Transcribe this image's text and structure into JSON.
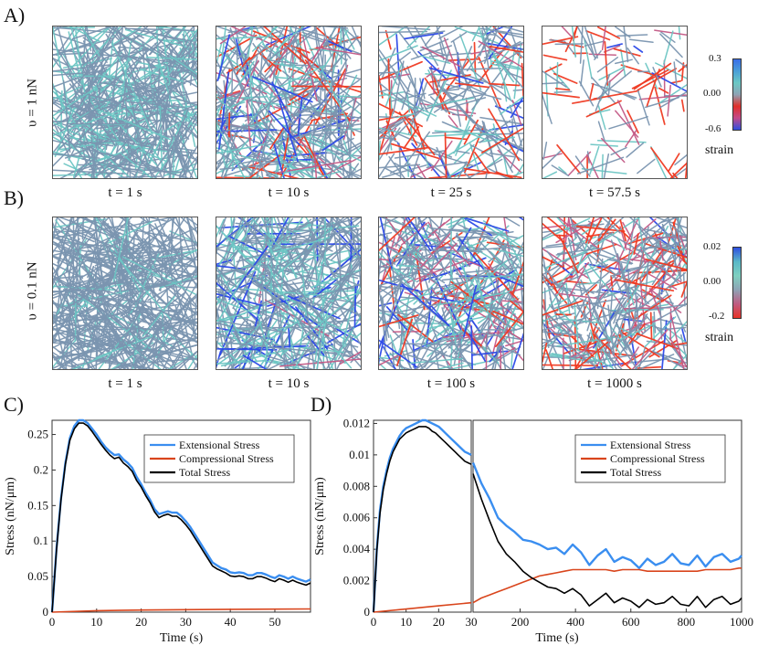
{
  "panel_labels": {
    "a": "A)",
    "b": "B)",
    "c": "C)",
    "d": "D)"
  },
  "row_a": {
    "ylabel": "υ = 1 nN",
    "times": [
      "t = 1 s",
      "t = 10 s",
      "t = 25 s",
      "t = 57.5 s"
    ],
    "colorbar": {
      "top": "0.3",
      "mid": "0.00",
      "bottom": "-0.6",
      "title": "strain",
      "colors": [
        "#3a6ee8",
        "#4a9fd8",
        "#6bc8c4",
        "#8fa3b5",
        "#e0302a",
        "#c24a8a",
        "#2f4fe0"
      ]
    }
  },
  "row_b": {
    "ylabel": "υ = 0.1 nN",
    "times": [
      "t = 1 s",
      "t = 10 s",
      "t = 100 s",
      "t = 1000 s"
    ],
    "colorbar": {
      "top": "0.02",
      "mid": "0.00",
      "bottom": "-0.2",
      "title": "strain",
      "colors": [
        "#2f4fe0",
        "#5ab8c8",
        "#7fd0c0",
        "#8fa3b5",
        "#c05c82",
        "#e83428"
      ]
    }
  },
  "network_colors": {
    "base": "#7b95b0",
    "cyan": "#6cc6c4",
    "blue": "#2c49e8",
    "red": "#f03a22",
    "pink": "#c45a86"
  },
  "chart_data": [
    {
      "id": "C",
      "type": "line",
      "xlabel": "Time (s)",
      "ylabel": "Stress (nN/μm)",
      "xlim": [
        0,
        58
      ],
      "ylim": [
        0,
        0.27
      ],
      "xticks": [
        0,
        10,
        20,
        30,
        40,
        50
      ],
      "xtick_labels": [
        "0",
        "10",
        "20",
        "30",
        "40",
        "50"
      ],
      "yticks": [
        0,
        0.05,
        0.1,
        0.15,
        0.2,
        0.25
      ],
      "ytick_labels": [
        "0",
        "0.05",
        "0.1",
        "0.15",
        "0.2",
        "0.25"
      ],
      "legend": [
        "Extensional Stress",
        "Compressional Stress",
        "Total Stress"
      ],
      "series": [
        {
          "name": "Extensional Stress",
          "color": "#3a8ef0",
          "x": [
            0,
            1,
            2,
            3,
            4,
            5,
            6,
            7,
            8,
            9,
            10,
            11,
            12,
            13,
            14,
            15,
            16,
            17,
            18,
            19,
            20,
            21,
            22,
            23,
            24,
            25,
            26,
            27,
            28,
            29,
            30,
            31,
            32,
            33,
            34,
            35,
            36,
            37,
            38,
            39,
            40,
            41,
            42,
            43,
            44,
            45,
            46,
            47,
            48,
            49,
            50,
            51,
            52,
            53,
            54,
            55,
            56,
            57,
            58
          ],
          "values": [
            0,
            0.09,
            0.16,
            0.21,
            0.245,
            0.262,
            0.27,
            0.27,
            0.266,
            0.258,
            0.25,
            0.24,
            0.232,
            0.226,
            0.221,
            0.222,
            0.215,
            0.21,
            0.203,
            0.19,
            0.18,
            0.168,
            0.158,
            0.145,
            0.138,
            0.14,
            0.142,
            0.14,
            0.14,
            0.135,
            0.128,
            0.12,
            0.11,
            0.1,
            0.09,
            0.08,
            0.07,
            0.066,
            0.062,
            0.06,
            0.056,
            0.055,
            0.056,
            0.055,
            0.052,
            0.052,
            0.055,
            0.055,
            0.053,
            0.05,
            0.048,
            0.052,
            0.05,
            0.047,
            0.05,
            0.047,
            0.045,
            0.043,
            0.046
          ]
        },
        {
          "name": "Compressional Stress",
          "color": "#d9451c",
          "x": [
            0,
            10,
            20,
            30,
            40,
            50,
            58
          ],
          "values": [
            0,
            0.002,
            0.003,
            0.0035,
            0.004,
            0.0042,
            0.0045
          ]
        },
        {
          "name": "Total Stress",
          "color": "#000000",
          "x": [
            0,
            1,
            2,
            3,
            4,
            5,
            6,
            7,
            8,
            9,
            10,
            11,
            12,
            13,
            14,
            15,
            16,
            17,
            18,
            19,
            20,
            21,
            22,
            23,
            24,
            25,
            26,
            27,
            28,
            29,
            30,
            31,
            32,
            33,
            34,
            35,
            36,
            37,
            38,
            39,
            40,
            41,
            42,
            43,
            44,
            45,
            46,
            47,
            48,
            49,
            50,
            51,
            52,
            53,
            54,
            55,
            56,
            57,
            58
          ],
          "values": [
            0,
            0.088,
            0.158,
            0.208,
            0.242,
            0.258,
            0.266,
            0.266,
            0.262,
            0.254,
            0.245,
            0.236,
            0.228,
            0.221,
            0.216,
            0.218,
            0.21,
            0.205,
            0.198,
            0.185,
            0.176,
            0.164,
            0.154,
            0.141,
            0.133,
            0.136,
            0.138,
            0.135,
            0.135,
            0.13,
            0.123,
            0.115,
            0.105,
            0.095,
            0.085,
            0.075,
            0.065,
            0.061,
            0.058,
            0.055,
            0.051,
            0.05,
            0.051,
            0.05,
            0.047,
            0.047,
            0.05,
            0.05,
            0.048,
            0.045,
            0.043,
            0.047,
            0.045,
            0.042,
            0.045,
            0.042,
            0.04,
            0.038,
            0.041
          ]
        }
      ]
    },
    {
      "id": "D",
      "type": "line",
      "xlabel": "Time (s)",
      "ylabel": "Stress (nN/μm)",
      "ylim": [
        0,
        0.0122
      ],
      "yticks": [
        0,
        0.002,
        0.004,
        0.006,
        0.008,
        0.01,
        0.012
      ],
      "ytick_labels": [
        "0",
        "0.002",
        "0.004",
        "0.006",
        "0.008",
        "0.01",
        "0.012"
      ],
      "left_xlim": [
        0,
        30
      ],
      "left_xticks": [
        0,
        10,
        20,
        30
      ],
      "left_xtick_labels": [
        "0",
        "10",
        "20",
        "30"
      ],
      "right_xlim": [
        30,
        1000
      ],
      "right_xticks": [
        200,
        400,
        600,
        800,
        1000
      ],
      "right_xtick_labels": [
        "200",
        "400",
        "600",
        "800",
        "1000"
      ],
      "legend": [
        "Extensional Stress",
        "Compressional Stress",
        "Total Stress"
      ],
      "series_left": [
        {
          "name": "Extensional Stress",
          "color": "#3a8ef0",
          "x": [
            0,
            1,
            2,
            3,
            4,
            5,
            6,
            7,
            8,
            9,
            10,
            11,
            12,
            13,
            14,
            15,
            16,
            17,
            18,
            19,
            20,
            21,
            22,
            23,
            24,
            25,
            26,
            27,
            28,
            29,
            30
          ],
          "values": [
            0,
            0.004,
            0.0065,
            0.008,
            0.009,
            0.0098,
            0.0104,
            0.0108,
            0.0112,
            0.0115,
            0.0117,
            0.0118,
            0.0119,
            0.012,
            0.0121,
            0.0122,
            0.0122,
            0.0121,
            0.012,
            0.0119,
            0.0118,
            0.0116,
            0.0114,
            0.0112,
            0.011,
            0.0108,
            0.0106,
            0.0104,
            0.0102,
            0.0101,
            0.01
          ]
        },
        {
          "name": "Compressional Stress",
          "color": "#d9451c",
          "x": [
            0,
            10,
            20,
            30
          ],
          "values": [
            0,
            0.0002,
            0.0004,
            0.0006
          ]
        },
        {
          "name": "Total Stress",
          "color": "#000000",
          "x": [
            0,
            1,
            2,
            3,
            4,
            5,
            6,
            7,
            8,
            9,
            10,
            11,
            12,
            13,
            14,
            15,
            16,
            17,
            18,
            19,
            20,
            21,
            22,
            23,
            24,
            25,
            26,
            27,
            28,
            29,
            30
          ],
          "values": [
            0,
            0.0039,
            0.0063,
            0.0078,
            0.0088,
            0.0096,
            0.0102,
            0.0106,
            0.011,
            0.0112,
            0.0114,
            0.0115,
            0.0116,
            0.0117,
            0.0118,
            0.0118,
            0.0118,
            0.0117,
            0.0115,
            0.0114,
            0.0112,
            0.011,
            0.0108,
            0.0106,
            0.0104,
            0.0102,
            0.01,
            0.0098,
            0.0096,
            0.0095,
            0.0094
          ]
        }
      ],
      "series_right": [
        {
          "name": "Extensional Stress",
          "color": "#3a8ef0",
          "x": [
            30,
            60,
            90,
            120,
            150,
            180,
            210,
            240,
            270,
            300,
            330,
            360,
            390,
            420,
            450,
            480,
            510,
            540,
            570,
            600,
            630,
            660,
            690,
            720,
            750,
            780,
            810,
            840,
            870,
            900,
            930,
            960,
            990,
            1000
          ],
          "values": [
            0.0095,
            0.0082,
            0.0072,
            0.006,
            0.0055,
            0.0051,
            0.0046,
            0.0045,
            0.0043,
            0.004,
            0.0041,
            0.0037,
            0.0043,
            0.0038,
            0.003,
            0.0036,
            0.004,
            0.0032,
            0.0035,
            0.0033,
            0.0028,
            0.0034,
            0.003,
            0.0032,
            0.0037,
            0.0031,
            0.003,
            0.0036,
            0.0029,
            0.0035,
            0.0037,
            0.0032,
            0.0034,
            0.0036
          ]
        },
        {
          "name": "Compressional Stress",
          "color": "#d9451c",
          "x": [
            30,
            60,
            90,
            120,
            150,
            180,
            210,
            240,
            270,
            300,
            330,
            360,
            390,
            420,
            450,
            480,
            510,
            540,
            570,
            600,
            630,
            660,
            690,
            720,
            750,
            780,
            810,
            840,
            870,
            900,
            930,
            960,
            990,
            1000
          ],
          "values": [
            0.0006,
            0.0009,
            0.0011,
            0.0013,
            0.0015,
            0.0017,
            0.0019,
            0.0021,
            0.0023,
            0.0024,
            0.0025,
            0.0026,
            0.0027,
            0.0027,
            0.0027,
            0.0027,
            0.0027,
            0.0026,
            0.0027,
            0.0027,
            0.0027,
            0.0026,
            0.0026,
            0.0026,
            0.0026,
            0.0026,
            0.0026,
            0.0026,
            0.0027,
            0.0027,
            0.0027,
            0.0027,
            0.0028,
            0.0028
          ]
        },
        {
          "name": "Total Stress",
          "color": "#000000",
          "x": [
            30,
            60,
            90,
            120,
            150,
            180,
            210,
            240,
            270,
            300,
            330,
            360,
            390,
            420,
            450,
            480,
            510,
            540,
            570,
            600,
            630,
            660,
            690,
            720,
            750,
            780,
            810,
            840,
            870,
            900,
            930,
            960,
            990,
            1000
          ],
          "values": [
            0.0088,
            0.0072,
            0.0058,
            0.0045,
            0.0037,
            0.0032,
            0.0026,
            0.0022,
            0.0019,
            0.0016,
            0.0015,
            0.0012,
            0.0015,
            0.0011,
            0.0004,
            0.0008,
            0.0012,
            0.0006,
            0.0009,
            0.0007,
            0.0003,
            0.0008,
            0.0005,
            0.0006,
            0.001,
            0.0005,
            0.0004,
            0.001,
            0.0003,
            0.0008,
            0.001,
            0.0005,
            0.0007,
            0.0009
          ]
        }
      ]
    }
  ]
}
